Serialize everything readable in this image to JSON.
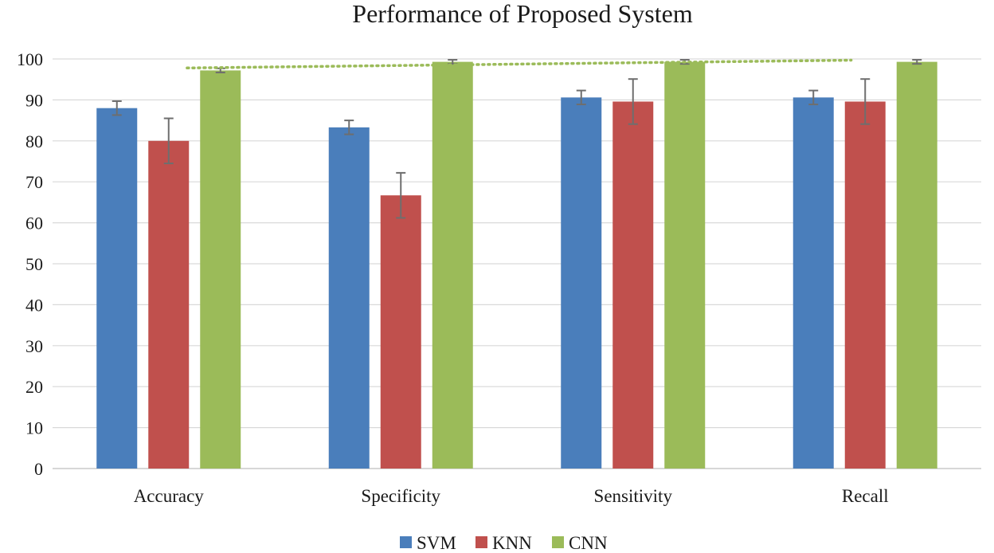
{
  "chart_data": {
    "type": "bar",
    "title": "Performance of Proposed System",
    "xlabel": "",
    "ylabel": "",
    "ylim": [
      0,
      100
    ],
    "yticks": [
      0,
      10,
      20,
      30,
      40,
      50,
      60,
      70,
      80,
      90,
      100
    ],
    "categories": [
      "Accuracy",
      "Specificity",
      "Sensitivity",
      "Recall"
    ],
    "series": [
      {
        "name": "SVM",
        "color": "#4a7ebb",
        "values": [
          88,
          83.3,
          90.6,
          90.6
        ],
        "errors": [
          1.7,
          1.7,
          1.7,
          1.7
        ]
      },
      {
        "name": "KNN",
        "color": "#c0504d",
        "values": [
          80,
          66.7,
          89.6,
          89.6
        ],
        "errors": [
          5.5,
          5.5,
          5.5,
          5.5
        ]
      },
      {
        "name": "CNN",
        "color": "#9bbb59",
        "values": [
          97.2,
          99.3,
          99.3,
          99.3
        ],
        "errors": [
          0.5,
          0.5,
          0.5,
          0.5
        ]
      }
    ],
    "trendline": {
      "series": "CNN",
      "style": "dotted",
      "color": "#9bbb59",
      "from_value": 97.8,
      "to_value": 99.7
    },
    "legend": {
      "position": "bottom",
      "entries": [
        "SVM",
        "KNN",
        "CNN"
      ]
    },
    "grid": true
  }
}
